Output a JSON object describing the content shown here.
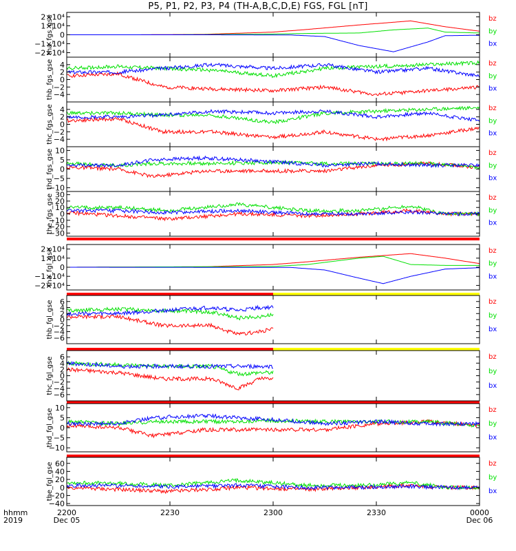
{
  "title": "P5, P1, P2, P3, P4 (TH-A,B,C,D,E) FGS, FGL [nT]",
  "colors": {
    "bx": "#0000ff",
    "by": "#00e000",
    "bz": "#ff0000",
    "flag_red": "#ff0000",
    "flag_yellow": "#ffff00"
  },
  "x_axis": {
    "row_labels": [
      "hhmm",
      "2019"
    ],
    "ticks": [
      {
        "time": "2200",
        "date": "Dec 05"
      },
      {
        "time": "2230",
        "date": ""
      },
      {
        "time": "2300",
        "date": ""
      },
      {
        "time": "2330",
        "date": ""
      },
      {
        "time": "0000",
        "date": "Dec 06"
      }
    ],
    "range_minutes": [
      0,
      120
    ]
  },
  "chart_data": [
    {
      "type": "line",
      "ylabel": "tha_fgs_gse",
      "ylim": [
        -25000,
        25000
      ],
      "yticks": [
        "2×10⁴",
        "1×10⁴",
        "0",
        "−1×10⁴",
        "−2×10⁴"
      ],
      "ytick_values": [
        20000,
        10000,
        0,
        -10000,
        -20000
      ],
      "legend": [
        "bz",
        "by",
        "bx"
      ],
      "series": [
        {
          "name": "bz",
          "color": "bz",
          "x": [
            0,
            20,
            40,
            60,
            70,
            85,
            100,
            110,
            120
          ],
          "y": [
            0,
            0,
            500,
            3000,
            6000,
            11000,
            15500,
            9000,
            4000
          ]
        },
        {
          "name": "by",
          "color": "by",
          "x": [
            0,
            30,
            60,
            70,
            85,
            95,
            105,
            110,
            120
          ],
          "y": [
            0,
            0,
            800,
            1500,
            2000,
            5500,
            7500,
            3000,
            2000
          ]
        },
        {
          "name": "bx",
          "color": "bx",
          "x": [
            0,
            40,
            65,
            75,
            85,
            95,
            105,
            110,
            120
          ],
          "y": [
            0,
            0,
            -200,
            -2000,
            -12000,
            -19000,
            -8000,
            -1000,
            -500
          ]
        }
      ]
    },
    {
      "type": "line",
      "ylabel": "thb_fgs_gse",
      "ylim": [
        -6,
        6
      ],
      "yticks": [
        "4",
        "2",
        "0",
        "−2",
        "−4"
      ],
      "ytick_values": [
        4,
        2,
        0,
        -2,
        -4
      ],
      "legend": [
        "bz",
        "by",
        "bx"
      ],
      "series": [
        {
          "name": "bz",
          "color": "bz",
          "x": [
            0,
            15,
            28,
            42,
            60,
            75,
            90,
            105,
            120
          ],
          "y": [
            1,
            1.5,
            -2,
            -2.5,
            -3,
            -2,
            -4,
            -3,
            -2
          ]
        },
        {
          "name": "by",
          "color": "by",
          "x": [
            0,
            15,
            28,
            42,
            60,
            75,
            90,
            105,
            120
          ],
          "y": [
            3,
            3.5,
            3,
            2.5,
            1,
            3,
            3.5,
            4,
            4.5
          ]
        },
        {
          "name": "bx",
          "color": "bx",
          "x": [
            0,
            15,
            28,
            42,
            60,
            75,
            90,
            105,
            120
          ],
          "y": [
            2,
            2,
            3,
            4,
            3,
            4,
            2,
            3,
            1
          ]
        }
      ]
    },
    {
      "type": "line",
      "ylabel": "thc_fgs_gse",
      "ylim": [
        -6,
        6
      ],
      "yticks": [
        "4",
        "2",
        "0",
        "−2",
        "−4"
      ],
      "ytick_values": [
        4,
        2,
        0,
        -2,
        -4
      ],
      "legend": [
        "bz",
        "by",
        "bx"
      ],
      "series": [
        {
          "name": "bz",
          "color": "bz",
          "x": [
            0,
            15,
            28,
            42,
            60,
            75,
            90,
            105,
            120
          ],
          "y": [
            1,
            1.5,
            -2,
            -2,
            -3.5,
            -2,
            -4,
            -3,
            -1
          ]
        },
        {
          "name": "by",
          "color": "by",
          "x": [
            0,
            15,
            28,
            42,
            60,
            75,
            90,
            105,
            120
          ],
          "y": [
            3,
            3,
            2.5,
            2.5,
            0.5,
            3,
            3.5,
            4,
            4.5
          ]
        },
        {
          "name": "bx",
          "color": "bx",
          "x": [
            0,
            15,
            28,
            42,
            60,
            75,
            90,
            105,
            120
          ],
          "y": [
            2,
            2,
            2.5,
            3.5,
            3,
            3.5,
            2,
            3,
            1
          ]
        }
      ]
    },
    {
      "type": "line",
      "ylabel": "thd_fgs_gse",
      "ylim": [
        -12,
        12
      ],
      "yticks": [
        "10",
        "5",
        "0",
        "−5",
        "−10"
      ],
      "ytick_values": [
        10,
        5,
        0,
        -5,
        -10
      ],
      "legend": [
        "bz",
        "by",
        "bx"
      ],
      "series": [
        {
          "name": "bz",
          "color": "bz",
          "x": [
            0,
            15,
            25,
            40,
            60,
            75,
            90,
            105,
            120
          ],
          "y": [
            1,
            0,
            -4,
            -1,
            -1,
            -1,
            2,
            3,
            1
          ]
        },
        {
          "name": "by",
          "color": "by",
          "x": [
            0,
            15,
            25,
            40,
            60,
            75,
            90,
            105,
            120
          ],
          "y": [
            3,
            2,
            3,
            3,
            3.5,
            3,
            3,
            3,
            1
          ]
        },
        {
          "name": "bx",
          "color": "bx",
          "x": [
            0,
            15,
            25,
            40,
            60,
            75,
            90,
            105,
            120
          ],
          "y": [
            2,
            2,
            5,
            6,
            4,
            2,
            3,
            2,
            2
          ]
        }
      ]
    },
    {
      "type": "line",
      "ylabel": "the_fgs_gse",
      "ylim": [
        -35,
        35
      ],
      "yticks": [
        "30",
        "20",
        "10",
        "0",
        "−10",
        "−20",
        "−30"
      ],
      "ytick_values": [
        30,
        20,
        10,
        0,
        -10,
        -20,
        -30
      ],
      "legend": [
        "bz",
        "by",
        "bx"
      ],
      "series": [
        {
          "name": "bz",
          "color": "bz",
          "x": [
            0,
            15,
            30,
            50,
            70,
            85,
            100,
            110,
            120
          ],
          "y": [
            2,
            -3,
            -8,
            0,
            -3,
            0,
            5,
            0,
            0
          ]
        },
        {
          "name": "by",
          "color": "by",
          "x": [
            0,
            15,
            30,
            50,
            70,
            85,
            100,
            110,
            120
          ],
          "y": [
            10,
            10,
            5,
            15,
            5,
            5,
            12,
            0,
            0
          ]
        },
        {
          "name": "bx",
          "color": "bx",
          "x": [
            0,
            15,
            30,
            50,
            70,
            85,
            100,
            110,
            120
          ],
          "y": [
            5,
            5,
            2,
            5,
            0,
            0,
            3,
            0,
            0
          ]
        }
      ]
    },
    {
      "type": "line",
      "ylabel": "tha_fgl_gse",
      "ylim": [
        -25000,
        25000
      ],
      "yticks": [
        "2×10⁴",
        "1×10⁴",
        "0",
        "−1×10⁴",
        "−2×10⁴"
      ],
      "ytick_values": [
        20000,
        10000,
        0,
        -10000,
        -20000
      ],
      "legend": [
        "bz",
        "by",
        "bx"
      ],
      "series": [
        {
          "name": "bz",
          "color": "bz",
          "x": [
            0,
            40,
            60,
            70,
            85,
            100,
            110,
            120
          ],
          "y": [
            0,
            500,
            3000,
            6000,
            11000,
            15000,
            10000,
            4000
          ]
        },
        {
          "name": "by",
          "color": "by",
          "x": [
            0,
            60,
            70,
            85,
            92,
            100,
            110,
            120
          ],
          "y": [
            0,
            800,
            3000,
            10000,
            12000,
            3000,
            2000,
            2000
          ]
        },
        {
          "name": "bx",
          "color": "bx",
          "x": [
            0,
            65,
            75,
            85,
            92,
            100,
            110,
            120
          ],
          "y": [
            0,
            -200,
            -3000,
            -12000,
            -18000,
            -10000,
            -2000,
            -500
          ]
        }
      ]
    },
    {
      "type": "line",
      "ylabel": "thb_fgl_gse",
      "ylim": [
        -8,
        8
      ],
      "yticks": [
        "6",
        "4",
        "2",
        "0",
        "−2",
        "−4",
        "−6"
      ],
      "ytick_values": [
        6,
        4,
        2,
        0,
        -2,
        -4,
        -6
      ],
      "legend": [
        "bz",
        "by",
        "bx"
      ],
      "series": [
        {
          "name": "bz",
          "color": "bz",
          "x": [
            0,
            15,
            28,
            42,
            50,
            56,
            60
          ],
          "y": [
            1,
            1,
            -2,
            -2,
            -5,
            -4,
            -3
          ]
        },
        {
          "name": "by",
          "color": "by",
          "x": [
            0,
            15,
            28,
            42,
            50,
            56,
            60
          ],
          "y": [
            3,
            3.5,
            3,
            2.5,
            0.5,
            1,
            1.5
          ]
        },
        {
          "name": "bx",
          "color": "bx",
          "x": [
            0,
            15,
            28,
            42,
            50,
            56,
            60
          ],
          "y": [
            2,
            2,
            3,
            4,
            3,
            4,
            4
          ]
        }
      ]
    },
    {
      "type": "line",
      "ylabel": "thc_fgl_gse",
      "ylim": [
        -8,
        8
      ],
      "yticks": [
        "6",
        "4",
        "2",
        "0",
        "−2",
        "−4",
        "−6"
      ],
      "ytick_values": [
        6,
        4,
        2,
        0,
        -2,
        -4,
        -6
      ],
      "legend": [
        "bz",
        "by",
        "bx"
      ],
      "series": [
        {
          "name": "bz",
          "color": "bz",
          "x": [
            0,
            15,
            28,
            42,
            50,
            56,
            60
          ],
          "y": [
            2,
            1,
            -1,
            -1,
            -4,
            -1,
            -1
          ]
        },
        {
          "name": "by",
          "color": "by",
          "x": [
            0,
            15,
            28,
            42,
            50,
            56,
            60
          ],
          "y": [
            4,
            3.5,
            3,
            3,
            0.5,
            1,
            1
          ]
        },
        {
          "name": "bx",
          "color": "bx",
          "x": [
            0,
            15,
            28,
            42,
            50,
            56,
            60
          ],
          "y": [
            4,
            3,
            3,
            3,
            3,
            3,
            3
          ]
        }
      ]
    },
    {
      "type": "line",
      "ylabel": "thd_fgl_gse",
      "ylim": [
        -12,
        12
      ],
      "yticks": [
        "10",
        "5",
        "0",
        "−5",
        "−10"
      ],
      "ytick_values": [
        10,
        5,
        0,
        -5,
        -10
      ],
      "legend": [
        "bz",
        "by",
        "bx"
      ],
      "series": [
        {
          "name": "bz",
          "color": "bz",
          "x": [
            0,
            15,
            25,
            40,
            60,
            75,
            90,
            105,
            120
          ],
          "y": [
            1,
            0,
            -4,
            -1,
            -1,
            -1,
            2,
            3,
            1
          ]
        },
        {
          "name": "by",
          "color": "by",
          "x": [
            0,
            15,
            25,
            40,
            60,
            75,
            90,
            105,
            120
          ],
          "y": [
            3,
            2,
            3,
            3,
            3.5,
            3,
            3,
            3,
            1
          ]
        },
        {
          "name": "bx",
          "color": "bx",
          "x": [
            0,
            15,
            25,
            40,
            60,
            75,
            90,
            105,
            120
          ],
          "y": [
            2,
            2,
            5,
            6,
            4,
            2,
            3,
            2,
            2
          ]
        }
      ]
    },
    {
      "type": "line",
      "ylabel": "the_fgl_gse",
      "ylim": [
        -45,
        75
      ],
      "yticks": [
        "60",
        "40",
        "20",
        "0",
        "−20",
        "−40"
      ],
      "ytick_values": [
        60,
        40,
        20,
        0,
        -20,
        -40
      ],
      "legend": [
        "bz",
        "by",
        "bx"
      ],
      "series": [
        {
          "name": "bz",
          "color": "bz",
          "x": [
            0,
            15,
            30,
            50,
            70,
            85,
            100,
            110,
            120
          ],
          "y": [
            0,
            -5,
            -10,
            0,
            -5,
            0,
            5,
            0,
            0
          ]
        },
        {
          "name": "by",
          "color": "by",
          "x": [
            0,
            15,
            30,
            50,
            70,
            85,
            100,
            110,
            120
          ],
          "y": [
            12,
            10,
            5,
            18,
            5,
            5,
            12,
            0,
            0
          ]
        },
        {
          "name": "bx",
          "color": "bx",
          "x": [
            0,
            15,
            30,
            50,
            70,
            85,
            100,
            110,
            120
          ],
          "y": [
            5,
            5,
            2,
            5,
            0,
            0,
            3,
            0,
            0
          ]
        }
      ]
    }
  ]
}
